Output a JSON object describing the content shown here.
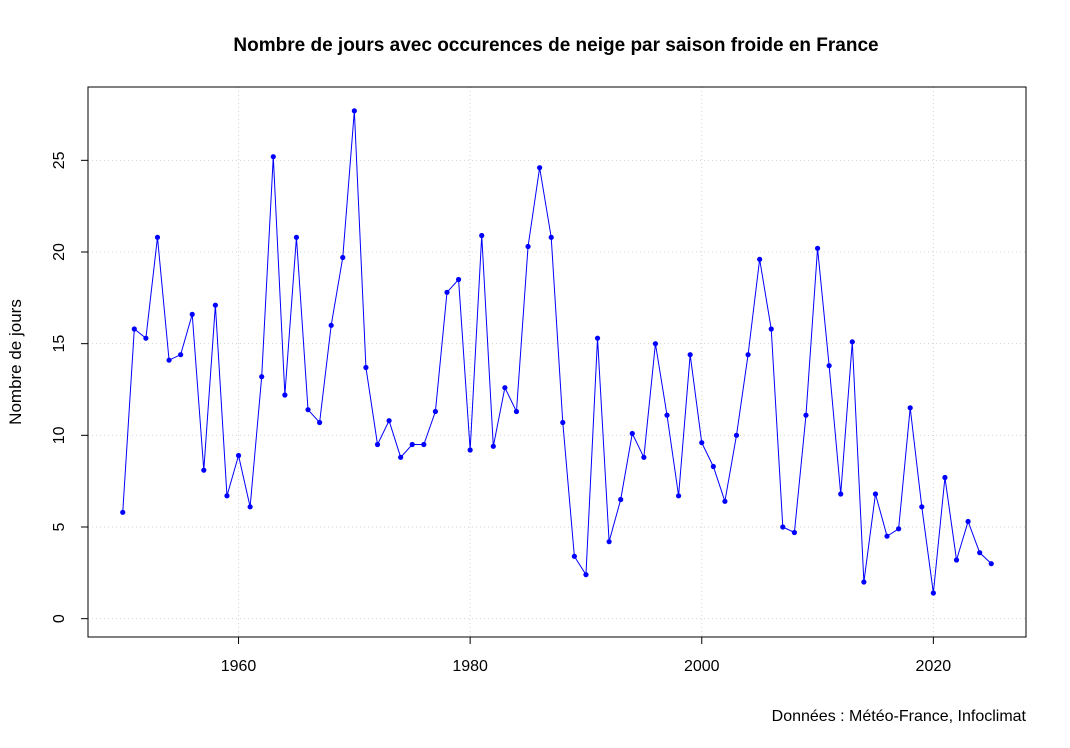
{
  "chart_data": {
    "type": "line",
    "title": "Nombre de jours avec occurences de neige par saison froide en France",
    "xlabel": "",
    "ylabel": "Nombre de jours",
    "caption": "Données : Météo-France, Infoclimat",
    "xlim": [
      1947,
      2028
    ],
    "ylim": [
      -1,
      29
    ],
    "x_ticks": [
      1960,
      1980,
      2000,
      2020
    ],
    "y_ticks": [
      0,
      5,
      10,
      15,
      20,
      25
    ],
    "grid": true,
    "legend": "none",
    "series": [
      {
        "color": "#0000ff",
        "x": [
          1950,
          1951,
          1952,
          1953,
          1954,
          1955,
          1956,
          1957,
          1958,
          1959,
          1960,
          1961,
          1962,
          1963,
          1964,
          1965,
          1966,
          1967,
          1968,
          1969,
          1970,
          1971,
          1972,
          1973,
          1974,
          1975,
          1976,
          1977,
          1978,
          1979,
          1980,
          1981,
          1982,
          1983,
          1984,
          1985,
          1986,
          1987,
          1988,
          1989,
          1990,
          1991,
          1992,
          1993,
          1994,
          1995,
          1996,
          1997,
          1998,
          1999,
          2000,
          2001,
          2002,
          2003,
          2004,
          2005,
          2006,
          2007,
          2008,
          2009,
          2010,
          2011,
          2012,
          2013,
          2014,
          2015,
          2016,
          2017,
          2018,
          2019,
          2020,
          2021,
          2022,
          2023,
          2024,
          2025
        ],
        "values": [
          5.8,
          15.8,
          15.3,
          20.8,
          14.1,
          14.4,
          16.6,
          8.1,
          17.1,
          6.7,
          8.9,
          6.1,
          13.2,
          25.2,
          12.2,
          20.8,
          11.4,
          10.7,
          16.0,
          19.7,
          27.7,
          13.7,
          9.5,
          10.8,
          8.8,
          9.5,
          9.5,
          11.3,
          17.8,
          18.5,
          9.2,
          20.9,
          9.4,
          12.6,
          11.3,
          20.3,
          24.6,
          20.8,
          10.7,
          3.4,
          2.4,
          15.3,
          4.2,
          6.5,
          10.1,
          8.8,
          15.0,
          11.1,
          6.7,
          14.4,
          9.6,
          8.3,
          6.4,
          10.0,
          14.4,
          19.6,
          15.8,
          5.0,
          4.7,
          11.1,
          20.2,
          13.8,
          6.8,
          15.1,
          2.0,
          6.8,
          4.5,
          4.9,
          11.5,
          6.1,
          1.4,
          7.7,
          3.2,
          5.3,
          3.6,
          3.0
        ]
      }
    ]
  }
}
